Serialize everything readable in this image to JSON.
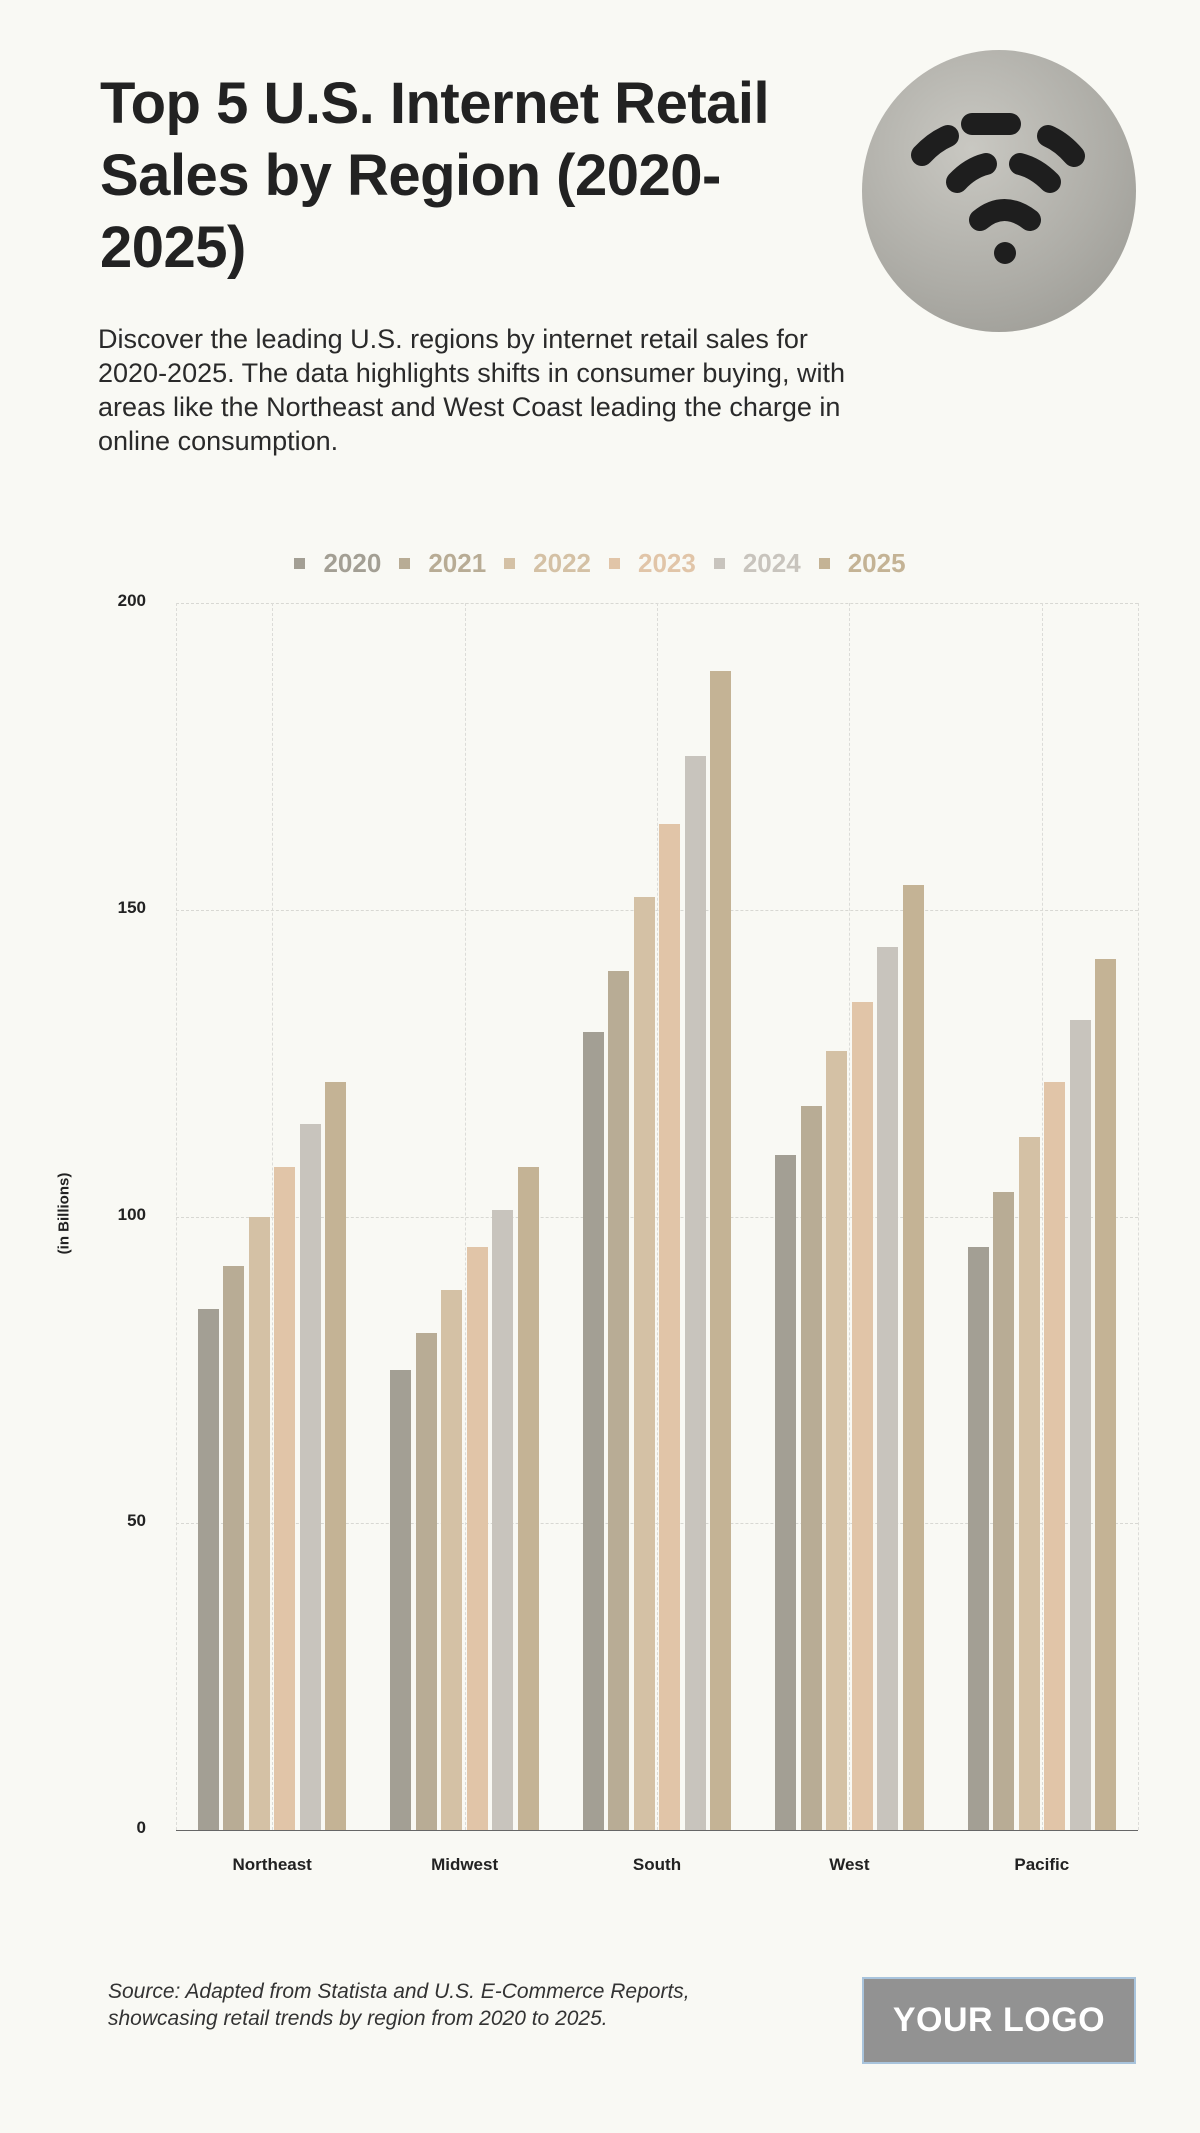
{
  "header": {
    "title": "Top 5 U.S. Internet Retail Sales by Region (2020-2025)",
    "subtitle": "Discover the leading U.S. regions by internet retail sales for 2020-2025. The data highlights shifts in consumer buying, with areas like the Northeast and West Coast leading the charge in online consumption."
  },
  "hero_image": {
    "icon": "wifi-drain-icon"
  },
  "legend": [
    {
      "label": "2020",
      "color": "#a39f94"
    },
    {
      "label": "2021",
      "color": "#b8ac95"
    },
    {
      "label": "2022",
      "color": "#d4c1a5"
    },
    {
      "label": "2023",
      "color": "#e1c5a8"
    },
    {
      "label": "2024",
      "color": "#c8c4bd"
    },
    {
      "label": "2025",
      "color": "#c4b395"
    }
  ],
  "axis": {
    "ylabel": "(in Billions)",
    "yticks": [
      "0",
      "50",
      "100",
      "150",
      "200"
    ]
  },
  "chart_data": {
    "type": "bar",
    "title": "Top 5 U.S. Internet Retail Sales by Region (2020-2025)",
    "xlabel": "",
    "ylabel": "(in Billions)",
    "ylim": [
      0,
      200
    ],
    "yticks": [
      0,
      50,
      100,
      150,
      200
    ],
    "grid": true,
    "legend_position": "top",
    "categories": [
      "Northeast",
      "Midwest",
      "South",
      "West",
      "Pacific"
    ],
    "series": [
      {
        "name": "2020",
        "color": "#a39f94",
        "values": [
          85,
          75,
          130,
          110,
          95
        ]
      },
      {
        "name": "2021",
        "color": "#b8ac95",
        "values": [
          92,
          81,
          140,
          118,
          104
        ]
      },
      {
        "name": "2022",
        "color": "#d4c1a5",
        "values": [
          100,
          88,
          152,
          127,
          113
        ]
      },
      {
        "name": "2023",
        "color": "#e1c5a8",
        "values": [
          108,
          95,
          164,
          135,
          122
        ]
      },
      {
        "name": "2024",
        "color": "#c8c4bd",
        "values": [
          115,
          101,
          175,
          144,
          132
        ]
      },
      {
        "name": "2025",
        "color": "#c4b395",
        "values": [
          122,
          108,
          189,
          154,
          142
        ]
      }
    ]
  },
  "footer": {
    "source_line1": "Source: Adapted from Statista and U.S. E-Commerce Reports,",
    "source_line2": "showcasing retail trends by region from 2020 to 2025.",
    "logo_text": "YOUR LOGO"
  }
}
